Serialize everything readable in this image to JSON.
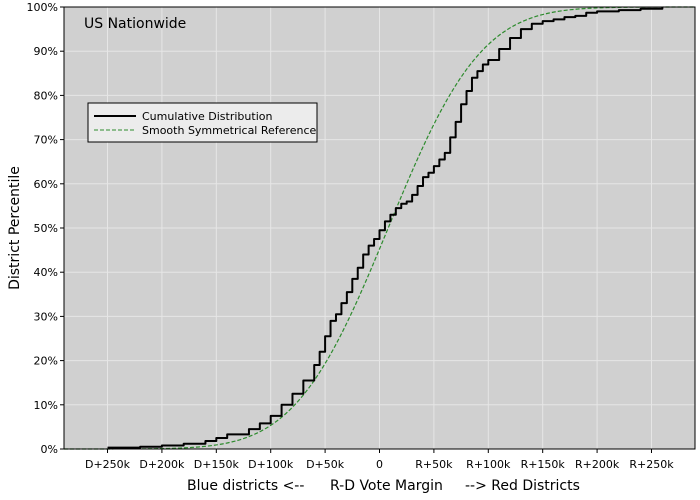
{
  "chart_data": {
    "type": "line",
    "annotation": "US Nationwide",
    "xlabel": {
      "left": "Blue districts <--",
      "center": "R-D Vote Margin",
      "right": "--> Red Districts"
    },
    "ylabel": "District Percentile",
    "xlim": [
      -290000,
      290000
    ],
    "ylim": [
      0,
      1
    ],
    "grid": true,
    "legend_position": "upper-left",
    "x_ticks": [
      {
        "value": -250000,
        "label": "D+250k"
      },
      {
        "value": -200000,
        "label": "D+200k"
      },
      {
        "value": -150000,
        "label": "D+150k"
      },
      {
        "value": -100000,
        "label": "D+100k"
      },
      {
        "value": -50000,
        "label": "D+50k"
      },
      {
        "value": 0,
        "label": "0"
      },
      {
        "value": 50000,
        "label": "R+50k"
      },
      {
        "value": 100000,
        "label": "R+100k"
      },
      {
        "value": 150000,
        "label": "R+150k"
      },
      {
        "value": 200000,
        "label": "R+200k"
      },
      {
        "value": 250000,
        "label": "R+250k"
      }
    ],
    "y_ticks": [
      {
        "value": 0,
        "label": "0%"
      },
      {
        "value": 0.1,
        "label": "10%"
      },
      {
        "value": 0.2,
        "label": "20%"
      },
      {
        "value": 0.3,
        "label": "30%"
      },
      {
        "value": 0.4,
        "label": "40%"
      },
      {
        "value": 0.5,
        "label": "50%"
      },
      {
        "value": 0.6,
        "label": "60%"
      },
      {
        "value": 0.7,
        "label": "70%"
      },
      {
        "value": 0.8,
        "label": "80%"
      },
      {
        "value": 0.9,
        "label": "90%"
      },
      {
        "value": 1.0,
        "label": "100%"
      }
    ],
    "series": [
      {
        "name": "Cumulative Distribution",
        "color": "#000000",
        "style": "solid",
        "x": [
          -250000,
          -220000,
          -200000,
          -180000,
          -160000,
          -150000,
          -140000,
          -120000,
          -110000,
          -100000,
          -90000,
          -80000,
          -70000,
          -60000,
          -55000,
          -50000,
          -45000,
          -40000,
          -35000,
          -30000,
          -25000,
          -20000,
          -15000,
          -10000,
          -5000,
          0,
          5000,
          10000,
          15000,
          20000,
          25000,
          30000,
          35000,
          40000,
          45000,
          50000,
          55000,
          60000,
          65000,
          70000,
          75000,
          80000,
          85000,
          90000,
          95000,
          100000,
          110000,
          120000,
          130000,
          140000,
          150000,
          160000,
          170000,
          180000,
          190000,
          200000,
          220000,
          240000,
          260000
        ],
        "y": [
          0.003,
          0.005,
          0.008,
          0.012,
          0.018,
          0.025,
          0.033,
          0.045,
          0.058,
          0.075,
          0.1,
          0.125,
          0.155,
          0.19,
          0.22,
          0.255,
          0.29,
          0.305,
          0.33,
          0.355,
          0.385,
          0.41,
          0.44,
          0.46,
          0.475,
          0.495,
          0.515,
          0.53,
          0.545,
          0.555,
          0.56,
          0.575,
          0.595,
          0.615,
          0.625,
          0.64,
          0.655,
          0.67,
          0.705,
          0.74,
          0.78,
          0.81,
          0.84,
          0.855,
          0.87,
          0.88,
          0.905,
          0.93,
          0.95,
          0.962,
          0.968,
          0.972,
          0.977,
          0.98,
          0.987,
          0.99,
          0.993,
          0.996,
          1.0
        ]
      },
      {
        "name": "Smooth Symmetrical Reference",
        "color": "#2e8b2e",
        "style": "dashed",
        "distribution": {
          "kind": "normal",
          "mean": 8000,
          "sd": 67000
        }
      }
    ]
  }
}
